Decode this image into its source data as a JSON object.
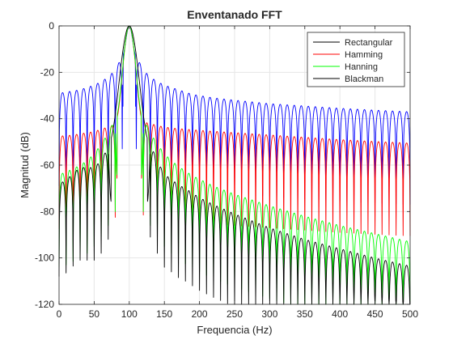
{
  "chart_data": {
    "type": "line",
    "title": "Enventanado FFT",
    "xlabel": "Frequencia (Hz)",
    "ylabel": "Magnitud (dB)",
    "xlim": [
      0,
      500
    ],
    "ylim": [
      -120,
      0
    ],
    "xticks": [
      0,
      50,
      100,
      150,
      200,
      250,
      300,
      350,
      400,
      450,
      500
    ],
    "yticks": [
      0,
      -20,
      -40,
      -60,
      -80,
      -100,
      -120
    ],
    "grid": true,
    "legend_position": "top-right",
    "center_frequency": 100,
    "bin_spacing": 10,
    "series": [
      {
        "name": "Rectangular",
        "color": "#0000ff",
        "envelope_x": [
          0,
          10,
          20,
          30,
          40,
          50,
          60,
          70,
          80,
          90,
          110,
          120,
          130,
          140,
          150,
          160,
          170,
          180,
          190,
          200,
          220,
          250,
          300,
          350,
          400,
          450,
          500
        ],
        "envelope_y": [
          -29,
          -28.5,
          -28,
          -27.5,
          -26.5,
          -25.5,
          -24,
          -22,
          -19,
          -13,
          -13,
          -19,
          -22,
          -24,
          -25.5,
          -26.5,
          -27.5,
          -28.5,
          -29.5,
          -30,
          -31,
          -32,
          -33.5,
          -34.5,
          -35.5,
          -36.3,
          -37
        ]
      },
      {
        "name": "Hamming",
        "color": "#ff0000",
        "envelope_x": [
          0,
          10,
          20,
          30,
          40,
          50,
          60,
          70,
          80,
          90,
          110,
          120,
          130,
          140,
          150,
          160,
          180,
          200,
          250,
          300,
          350,
          400,
          450,
          500
        ],
        "envelope_y": [
          -47.5,
          -47.3,
          -47,
          -46.5,
          -46,
          -45.5,
          -44.5,
          -43.5,
          -42.5,
          -41,
          -41,
          -41.5,
          -42,
          -43,
          -43.5,
          -44,
          -44.5,
          -45,
          -46,
          -47,
          -48,
          -49,
          -49.8,
          -50.5
        ]
      },
      {
        "name": "Hanning",
        "color": "#00ff00",
        "envelope_x": [
          0,
          10,
          20,
          30,
          40,
          50,
          60,
          70,
          80,
          90,
          110,
          120,
          130,
          140,
          150,
          160,
          170,
          180,
          190,
          200,
          220,
          250,
          300,
          350,
          400,
          450,
          500
        ],
        "envelope_y": [
          -64,
          -63,
          -61.5,
          -60,
          -58,
          -55,
          -51,
          -46,
          -40,
          -31,
          -31,
          -40,
          -46,
          -51,
          -55,
          -58,
          -60.5,
          -62.5,
          -64.5,
          -66,
          -69,
          -72.5,
          -77.5,
          -82,
          -86,
          -89.5,
          -93
        ]
      },
      {
        "name": "Blackman",
        "color": "#000000",
        "envelope_x": [
          0,
          10,
          20,
          30,
          40,
          50,
          60,
          70,
          80,
          90,
          110,
          120,
          130,
          140,
          150,
          160,
          170,
          180,
          190,
          200,
          220,
          250,
          300,
          350,
          400,
          450,
          500
        ],
        "envelope_y": [
          -68,
          -66.5,
          -63.5,
          -61,
          -61,
          -61,
          -58,
          -52,
          -44,
          -30,
          -30,
          -42,
          -51,
          -58,
          -64,
          -66,
          -68.5,
          -70,
          -72,
          -74,
          -77,
          -81,
          -87,
          -92,
          -96,
          -100,
          -103.5
        ]
      }
    ]
  }
}
